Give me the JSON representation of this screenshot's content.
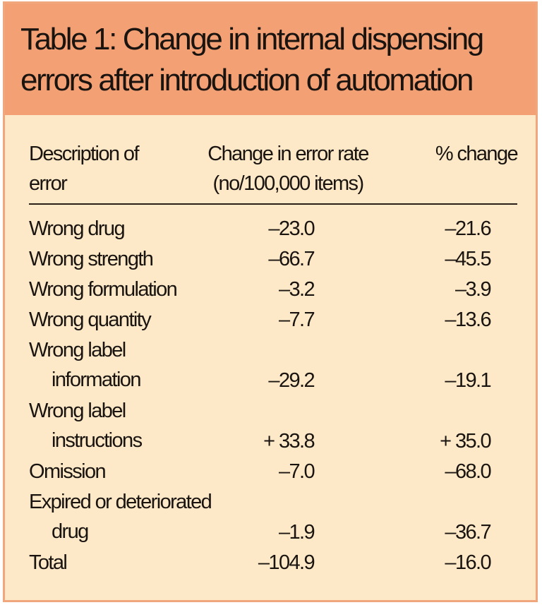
{
  "title": {
    "line1": "Table 1: Change in internal dispensing",
    "line2": "errors after introduction of automation"
  },
  "columns": {
    "description": [
      "Description of",
      "error"
    ],
    "change": [
      "Change in error rate",
      "(no/100,000 items)"
    ],
    "percent": "% change"
  },
  "rows": [
    {
      "label1": "Wrong drug",
      "label2": "",
      "change": "–23.0",
      "percent": "–21.6"
    },
    {
      "label1": "Wrong strength",
      "label2": "",
      "change": "–66.7",
      "percent": "–45.5"
    },
    {
      "label1": "Wrong formulation",
      "label2": "",
      "change": "–3.2",
      "percent": "–3.9"
    },
    {
      "label1": "Wrong quantity",
      "label2": "",
      "change": "–7.7",
      "percent": "–13.6"
    },
    {
      "label1": "Wrong label",
      "label2": "information",
      "change": "–29.2",
      "percent": "–19.1"
    },
    {
      "label1": "Wrong label",
      "label2": "instructions",
      "change": "+ 33.8",
      "percent": "+ 35.0"
    },
    {
      "label1": "Omission",
      "label2": "",
      "change": "–7.0",
      "percent": "–68.0"
    },
    {
      "label1": "Expired or deteriorated",
      "label2": "drug",
      "change": "–1.9",
      "percent": "–36.7"
    },
    {
      "label1": "Total",
      "label2": "",
      "change": "–104.9",
      "percent": "–16.0"
    }
  ],
  "colors": {
    "header_bg": "#f3a074",
    "body_bg": "#fde9c8",
    "text": "#1a1410"
  }
}
